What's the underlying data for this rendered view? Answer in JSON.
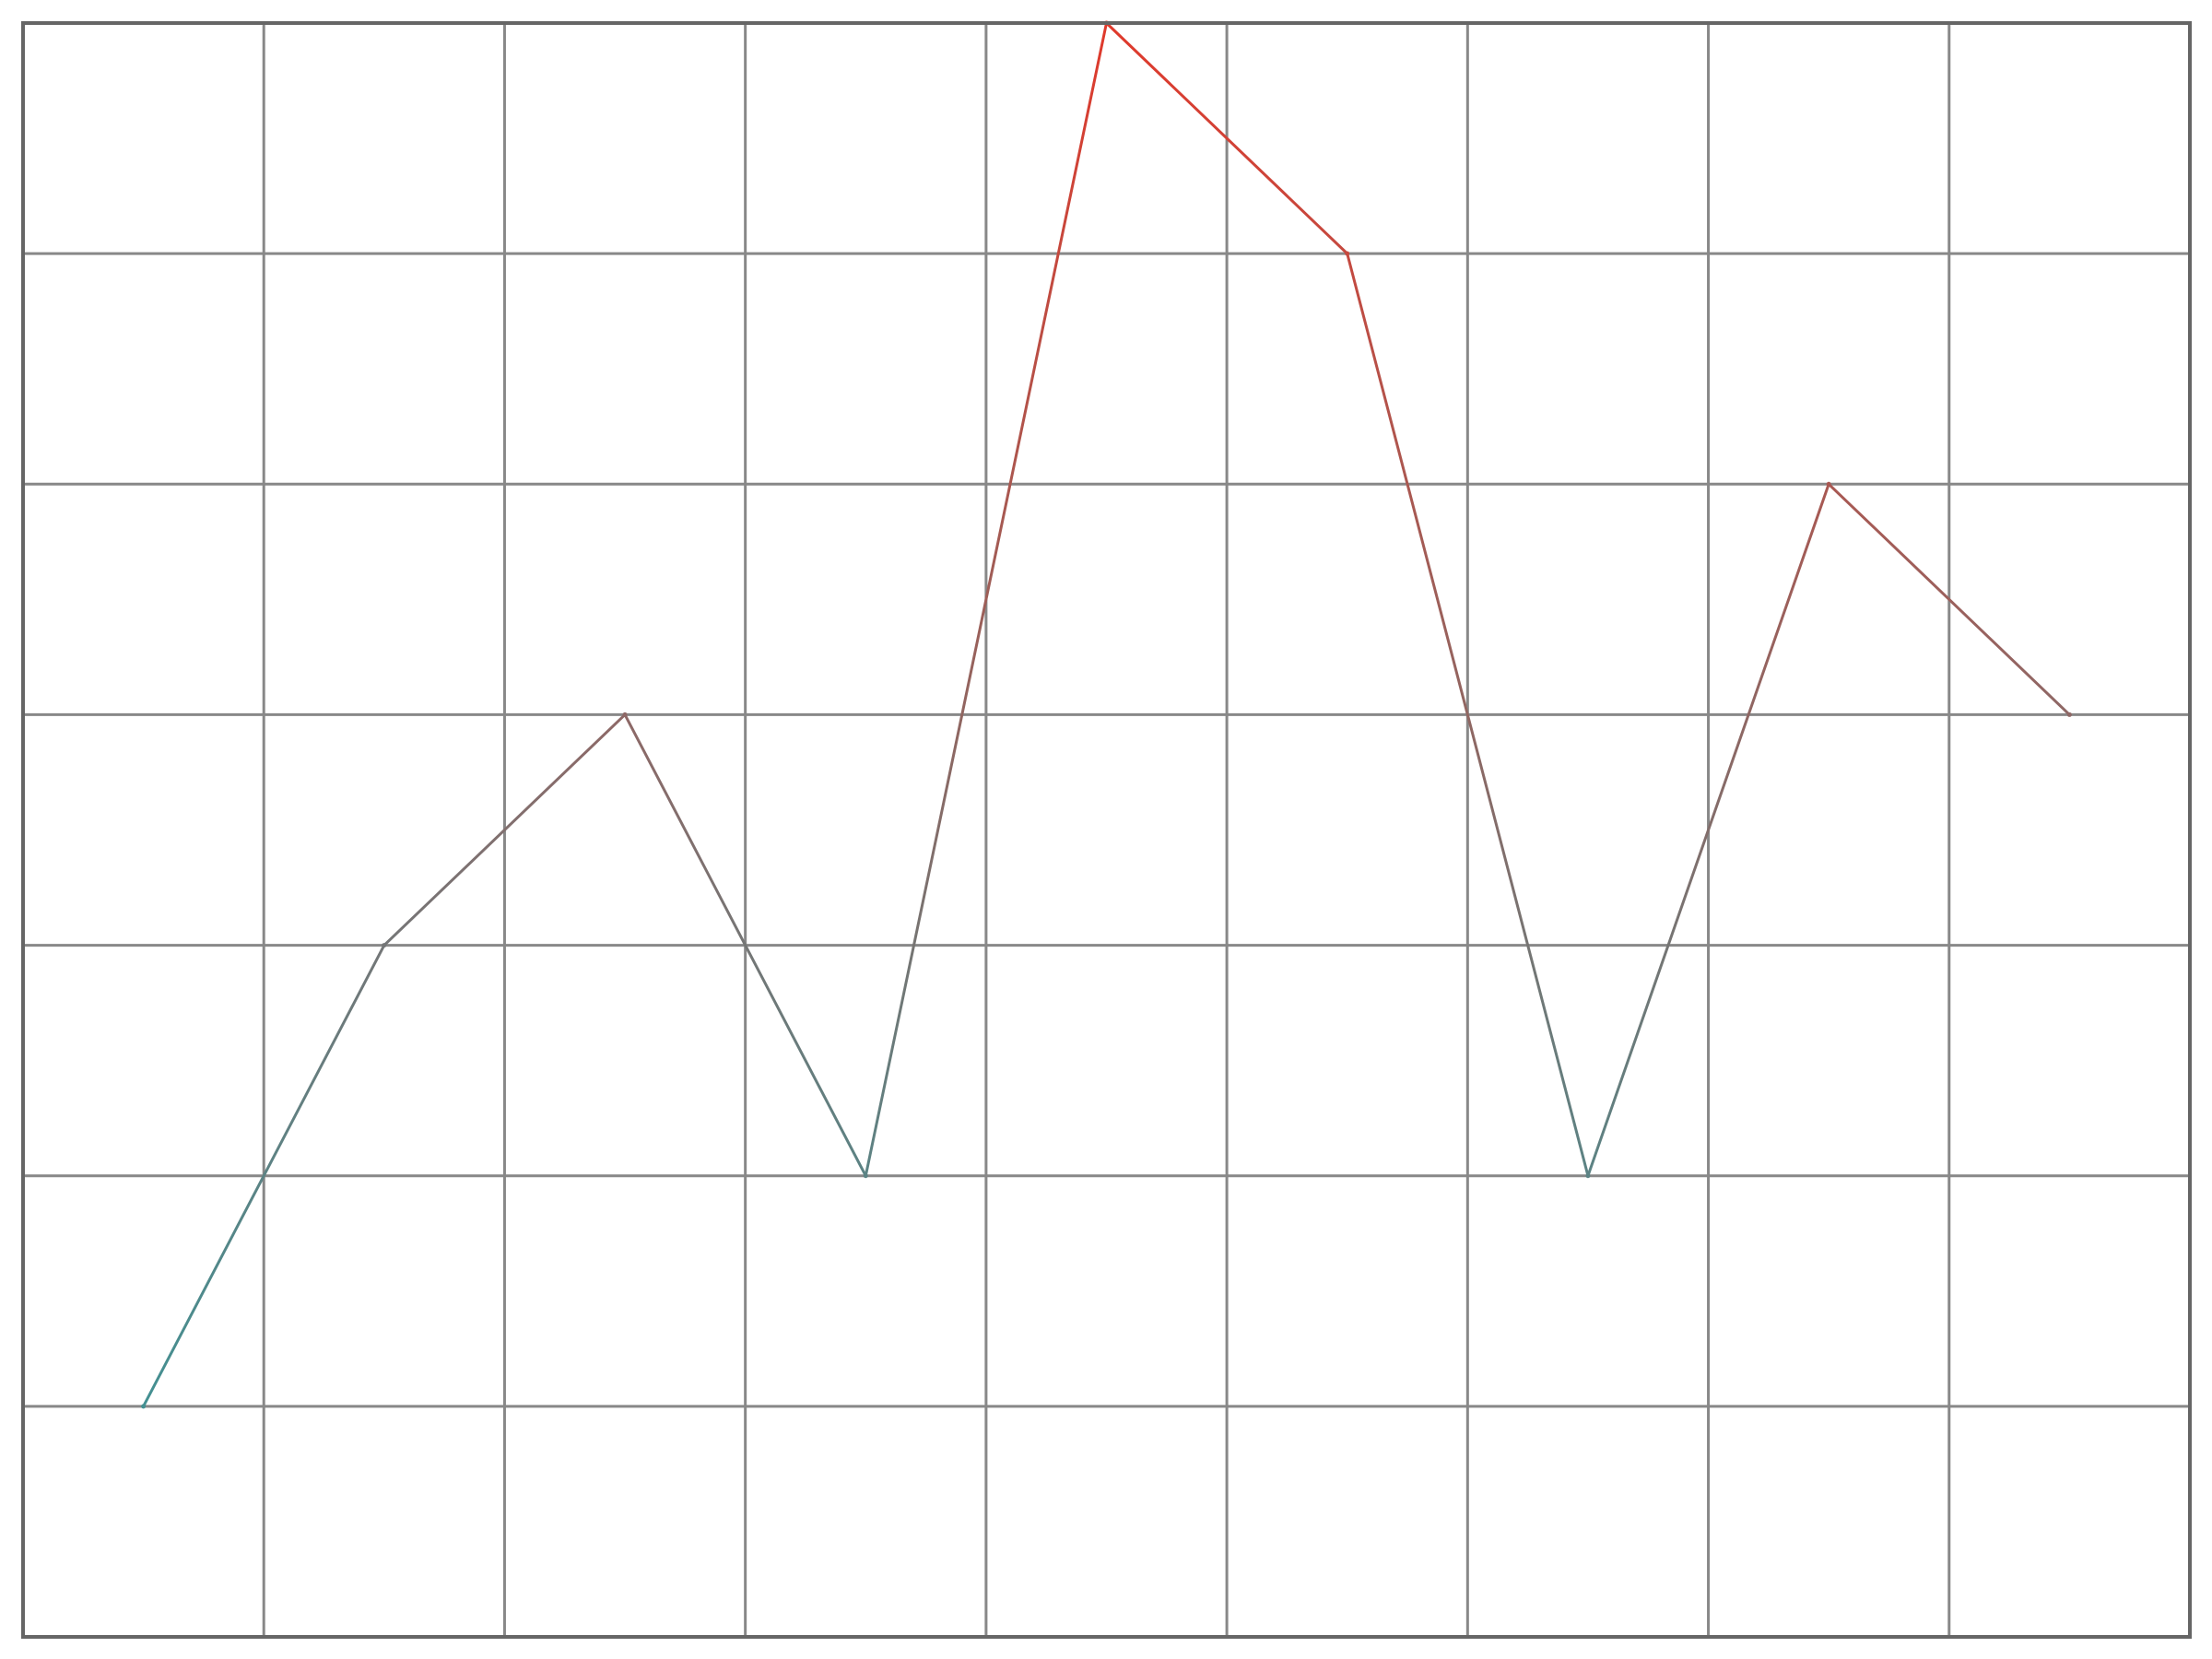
{
  "chart_data": {
    "type": "line",
    "x": [
      0,
      1,
      2,
      3,
      4,
      5,
      6,
      7,
      8
    ],
    "values": [
      1,
      3,
      4,
      2,
      7,
      6,
      2,
      5,
      4
    ],
    "xlim": [
      -0.5,
      8.5
    ],
    "ylim": [
      0,
      7
    ],
    "grid": true,
    "legend": "none",
    "line_gradient": {
      "low_color": "#2a9d9f",
      "high_color": "#e0392b"
    },
    "grid_color": "#888888",
    "border_color": "#666666"
  }
}
